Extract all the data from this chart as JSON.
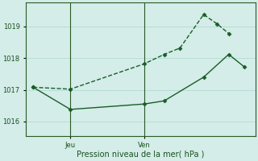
{
  "xlabel": "Pression niveau de la mer( hPa )",
  "bg_color": "#d4ede8",
  "grid_color": "#b8ddd6",
  "line_color": "#1a5c28",
  "axis_color": "#2a5a28",
  "text_color": "#1a5020",
  "yticks": [
    1016,
    1017,
    1018,
    1019
  ],
  "ylim": [
    1015.55,
    1019.75
  ],
  "xlim": [
    0,
    320
  ],
  "jeu_x": 62,
  "ven_x": 165,
  "line1_x": [
    10,
    62,
    165,
    193,
    215,
    248,
    267,
    283
  ],
  "line1_y": [
    1017.08,
    1017.02,
    1017.82,
    1018.12,
    1018.32,
    1019.38,
    1019.08,
    1018.78
  ],
  "line2_x": [
    10,
    62,
    165,
    193,
    248,
    283,
    305
  ],
  "line2_y": [
    1017.08,
    1016.38,
    1016.55,
    1016.65,
    1017.4,
    1018.12,
    1017.72
  ],
  "line1_style": "--",
  "line2_style": "-",
  "marker": "D",
  "marker_size": 2.5,
  "linewidth": 1.0,
  "ylabel_fontsize": 6,
  "xlabel_fontsize": 7
}
